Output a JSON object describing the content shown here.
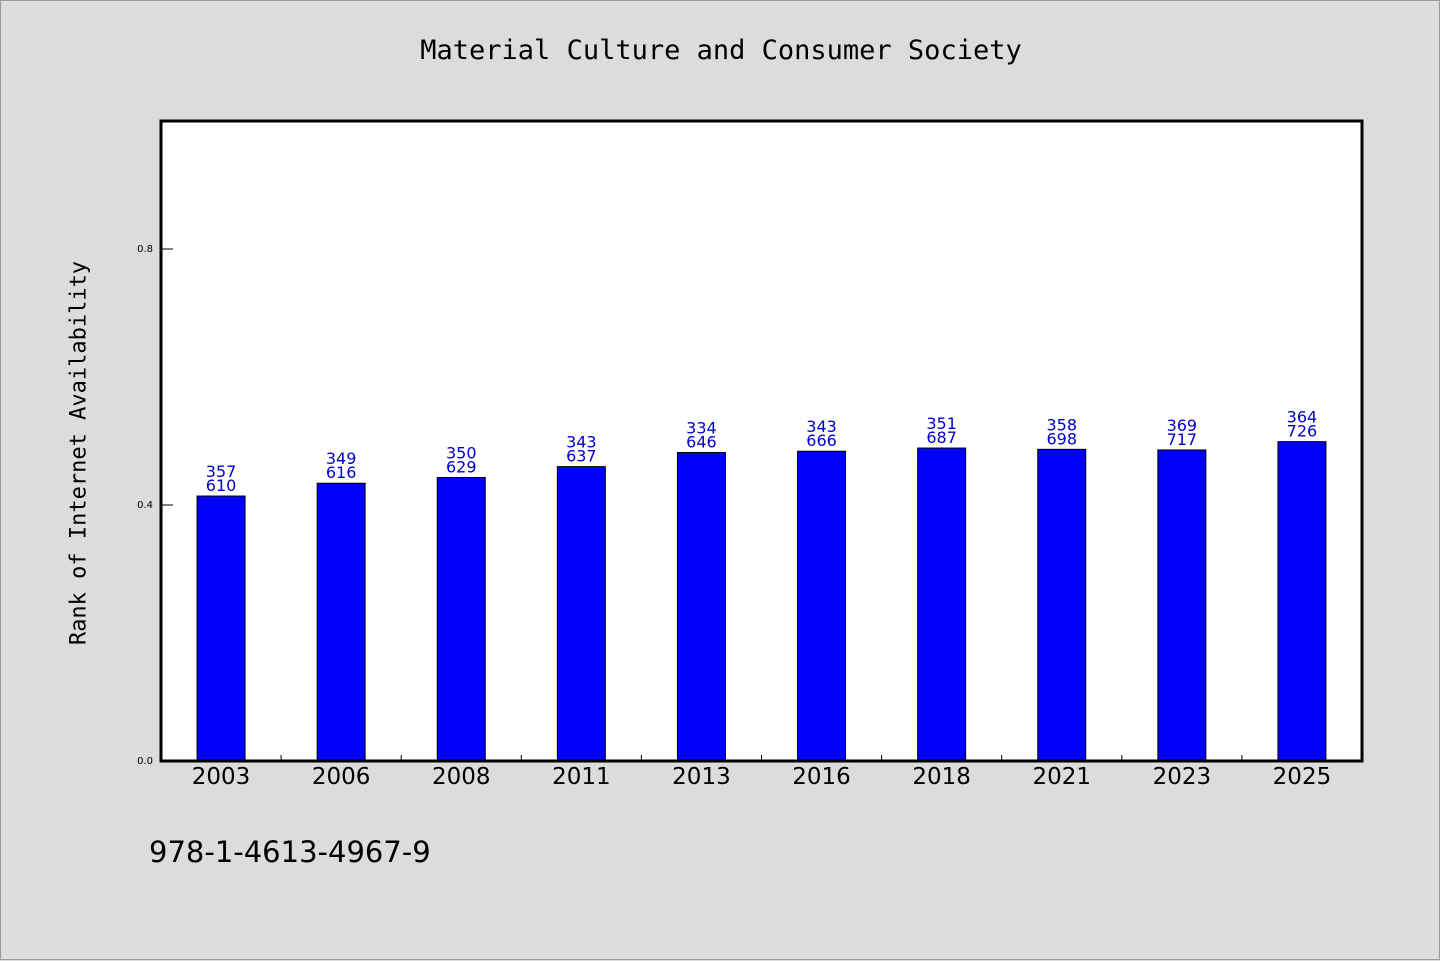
{
  "chart_data": {
    "type": "bar",
    "title": "Material Culture and Consumer Society",
    "xlabel": "",
    "ylabel": "Rank of Internet Availability",
    "categories": [
      "2003",
      "2006",
      "2008",
      "2011",
      "2013",
      "2016",
      "2018",
      "2021",
      "2023",
      "2025"
    ],
    "values": [
      0.414,
      0.434,
      0.443,
      0.46,
      0.482,
      0.484,
      0.489,
      0.487,
      0.486,
      0.499
    ],
    "annotations_top": [
      "357",
      "349",
      "350",
      "343",
      "334",
      "343",
      "351",
      "358",
      "369",
      "364"
    ],
    "annotations_bottom": [
      "610",
      "616",
      "629",
      "637",
      "646",
      "666",
      "687",
      "698",
      "717",
      "726"
    ],
    "ylim": [
      0,
      1.0
    ],
    "yticks": [
      0.0,
      0.4,
      0.8
    ],
    "ytick_labels": [
      "0.0",
      "0.4",
      "0.8"
    ],
    "bar_color": "#0000ff",
    "label_color": "#0000cc",
    "grid": false
  },
  "footer": {
    "isbn": "978-1-4613-4967-9"
  }
}
